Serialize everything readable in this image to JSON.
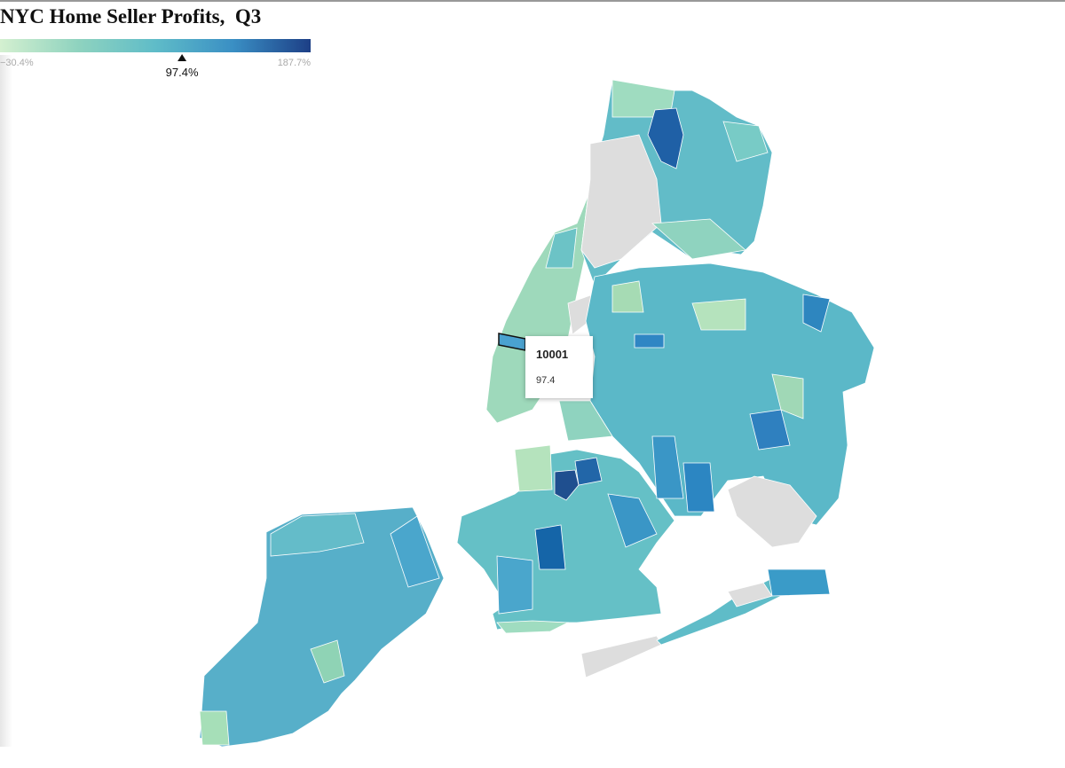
{
  "header": {
    "title": "NYC Home Seller Profits,  Q3"
  },
  "legend": {
    "min": {
      "value": -30.4,
      "label": "−30.4%"
    },
    "max": {
      "value": 187.7,
      "label": "187.7%"
    },
    "marker": {
      "value": 97.4,
      "label": "97.4%"
    },
    "colors": [
      "#d4f0d0",
      "#8fd3bf",
      "#5fbcc8",
      "#3a8fc4",
      "#1d3f86"
    ]
  },
  "tooltip": {
    "zip": "10001",
    "value": 97.4
  }
}
